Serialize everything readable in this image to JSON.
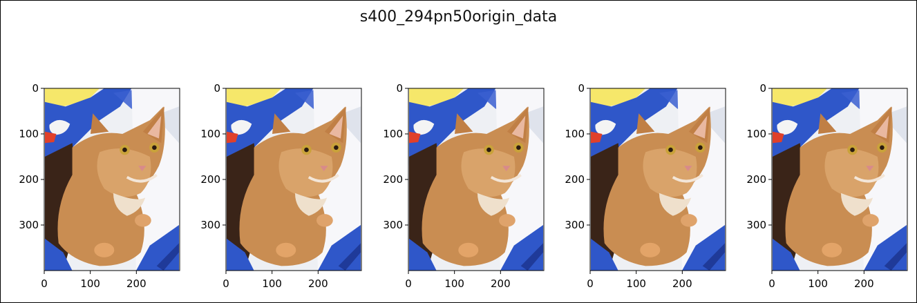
{
  "figure": {
    "title": "s400_294pn50origin_data"
  },
  "chart_data": {
    "type": "image-grid",
    "title": "s400_294pn50origin_data",
    "image_content": "orange cat lying on white blanket with blue and yellow fabric",
    "image_width": 294,
    "image_height": 400,
    "panels": [
      {
        "xticks": [
          "0",
          "100",
          "200"
        ],
        "yticks": [
          "0",
          "100",
          "200",
          "300"
        ],
        "xlim": [
          0,
          294
        ],
        "ylim": [
          400,
          0
        ]
      },
      {
        "xticks": [
          "0",
          "100",
          "200"
        ],
        "yticks": [
          "0",
          "100",
          "200",
          "300"
        ],
        "xlim": [
          0,
          294
        ],
        "ylim": [
          400,
          0
        ]
      },
      {
        "xticks": [
          "0",
          "100",
          "200"
        ],
        "yticks": [
          "0",
          "100",
          "200",
          "300"
        ],
        "xlim": [
          0,
          294
        ],
        "ylim": [
          400,
          0
        ]
      },
      {
        "xticks": [
          "0",
          "100",
          "200"
        ],
        "yticks": [
          "0",
          "100",
          "200",
          "300"
        ],
        "xlim": [
          0,
          294
        ],
        "ylim": [
          400,
          0
        ]
      },
      {
        "xticks": [
          "0",
          "100",
          "200"
        ],
        "yticks": [
          "0",
          "100",
          "200",
          "300"
        ],
        "xlim": [
          0,
          294
        ],
        "ylim": [
          400,
          0
        ]
      }
    ]
  }
}
